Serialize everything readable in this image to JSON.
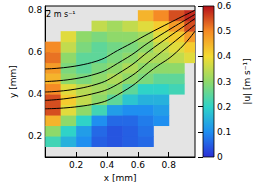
{
  "chart_data": {
    "type": "heatmap",
    "x_label": "x [mm]",
    "y_label": "y [mm]",
    "xlim": [
      0,
      0.97
    ],
    "ylim": [
      0.1,
      0.82
    ],
    "xticks": [
      0.2,
      0.4,
      0.6,
      0.8
    ],
    "yticks": [
      0.2,
      0.4,
      0.6,
      0.8
    ],
    "annotations": [
      "2 m s⁻¹"
    ],
    "cells": {
      "x": [
        0.05,
        0.15,
        0.25,
        0.35,
        0.45,
        0.55,
        0.65,
        0.75,
        0.85,
        0.95
      ],
      "y": [
        0.175,
        0.225,
        0.275,
        0.325,
        0.375,
        0.425,
        0.475,
        0.525,
        0.575,
        0.625,
        0.675,
        0.725,
        0.775
      ],
      "values": [
        [
          0.22,
          0.15,
          0.1,
          0.05,
          0.04,
          0.05,
          0.06,
          null,
          null,
          null
        ],
        [
          0.3,
          0.2,
          0.12,
          0.06,
          0.04,
          0.05,
          0.07,
          null,
          null,
          null
        ],
        [
          0.45,
          0.3,
          0.2,
          0.1,
          0.06,
          0.06,
          0.08,
          0.1,
          null,
          null
        ],
        [
          0.55,
          0.38,
          0.3,
          0.22,
          0.12,
          0.1,
          0.1,
          0.12,
          null,
          null
        ],
        [
          0.55,
          0.42,
          0.35,
          0.3,
          0.25,
          0.18,
          0.15,
          0.15,
          null,
          null
        ],
        [
          0.5,
          0.38,
          0.34,
          0.32,
          0.3,
          0.25,
          0.2,
          0.2,
          0.22,
          null
        ],
        [
          0.45,
          0.3,
          0.28,
          0.3,
          0.33,
          0.3,
          0.28,
          0.25,
          0.25,
          null
        ],
        [
          0.48,
          0.28,
          0.25,
          0.28,
          0.3,
          0.33,
          0.3,
          0.3,
          0.3,
          null
        ],
        [
          0.52,
          0.3,
          0.25,
          0.25,
          0.28,
          0.3,
          0.33,
          0.33,
          0.35,
          0.38
        ],
        [
          0.5,
          0.35,
          0.28,
          0.25,
          0.27,
          0.28,
          0.3,
          0.35,
          0.38,
          0.42
        ],
        [
          null,
          0.38,
          0.3,
          0.28,
          0.3,
          0.3,
          0.32,
          0.38,
          0.42,
          0.48
        ],
        [
          null,
          null,
          null,
          0.35,
          0.32,
          0.35,
          0.38,
          0.42,
          0.48,
          0.55
        ],
        [
          null,
          null,
          null,
          null,
          null,
          null,
          0.45,
          0.5,
          0.55,
          0.58
        ]
      ]
    },
    "streamlines": {
      "color": "#000000",
      "lines": [
        {
          "x": [
            0,
            0.3,
            0.5,
            0.7,
            0.97
          ],
          "y": [
            0.52,
            0.55,
            0.62,
            0.7,
            0.8
          ]
        },
        {
          "x": [
            0,
            0.3,
            0.5,
            0.7,
            0.97
          ],
          "y": [
            0.46,
            0.49,
            0.56,
            0.66,
            0.78
          ]
        },
        {
          "x": [
            0,
            0.3,
            0.5,
            0.7,
            0.97
          ],
          "y": [
            0.41,
            0.44,
            0.51,
            0.62,
            0.76
          ]
        },
        {
          "x": [
            0,
            0.3,
            0.5,
            0.7,
            0.97
          ],
          "y": [
            0.37,
            0.4,
            0.46,
            0.57,
            0.73
          ]
        },
        {
          "x": [
            0,
            0.3,
            0.5,
            0.7,
            0.85,
            0.97
          ],
          "y": [
            0.33,
            0.35,
            0.41,
            0.52,
            0.6,
            0.7
          ]
        }
      ]
    },
    "colorbar": {
      "label": "|u| [m s⁻¹]",
      "range": [
        0,
        0.6
      ],
      "ticks": [
        0,
        0.1,
        0.2,
        0.3,
        0.4,
        0.5,
        0.6
      ],
      "colors": [
        "#2b2fd6",
        "#1f8ff0",
        "#2fd3c8",
        "#8fd96a",
        "#f4dc32",
        "#f58b25",
        "#b5101a"
      ]
    }
  }
}
